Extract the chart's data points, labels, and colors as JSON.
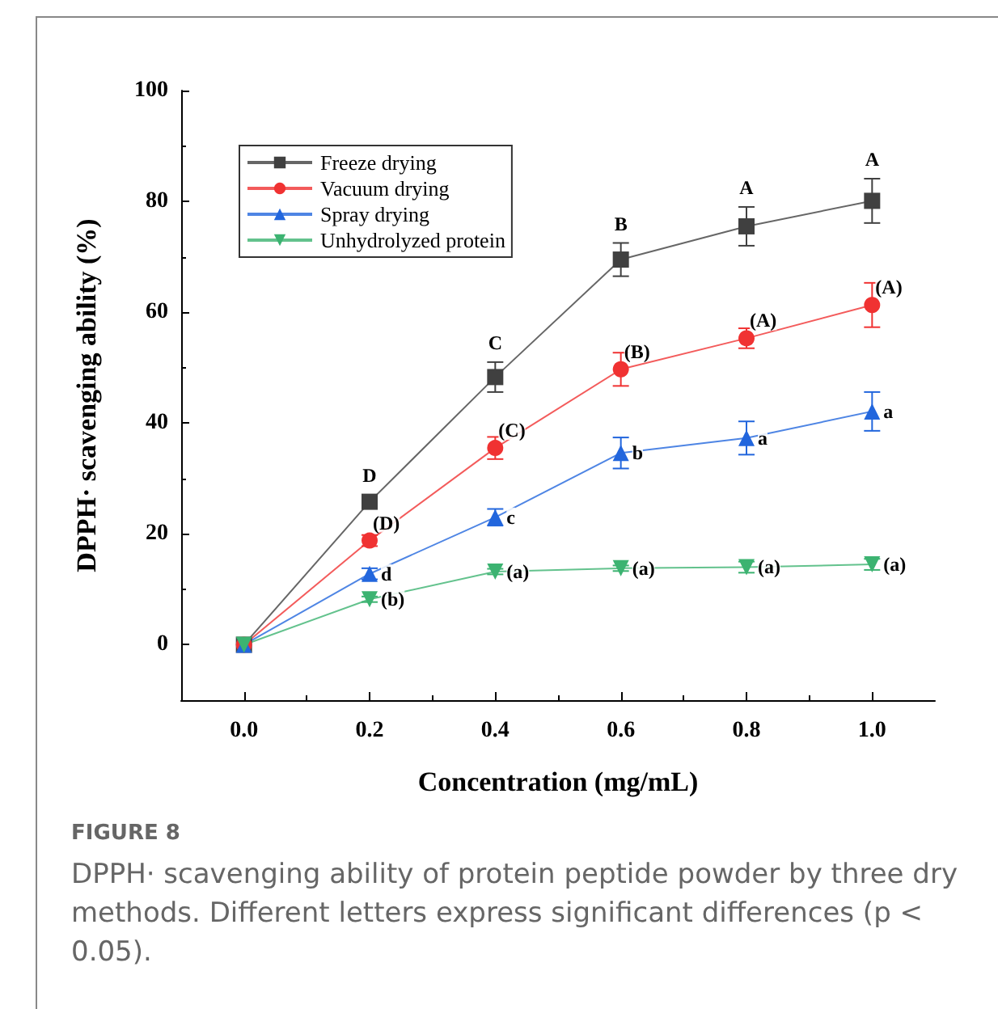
{
  "chart_data": {
    "type": "line",
    "xlabel": "Concentration (mg/mL)",
    "ylabel": "DPPH· scavenging ability (%)",
    "x": [
      0,
      0.2,
      0.4,
      0.6,
      0.8,
      1.0
    ],
    "xlim": [
      -0.1,
      1.1
    ],
    "xticks": [
      {
        "value": 0,
        "label": "0.0"
      },
      {
        "value": 0.2,
        "label": "0.2"
      },
      {
        "value": 0.4,
        "label": "0.4"
      },
      {
        "value": 0.6,
        "label": "0.6"
      },
      {
        "value": 0.8,
        "label": "0.8"
      },
      {
        "value": 1.0,
        "label": "1.0"
      }
    ],
    "ylim": [
      -10,
      100
    ],
    "yticks": [
      0,
      20,
      40,
      60,
      80,
      100
    ],
    "grid": false,
    "legend": "top left",
    "line_style": "solid",
    "series": [
      {
        "name": "Freeze drying",
        "color": "#404040",
        "marker": "square",
        "values": [
          0,
          25.8,
          48.3,
          69.5,
          75.5,
          80.1
        ],
        "errors": [
          null,
          1.2,
          2.7,
          3,
          3.5,
          4
        ]
      },
      {
        "name": "Vacuum drying",
        "color": "#f03232",
        "marker": "circle",
        "values": [
          0,
          18.8,
          35.5,
          49.7,
          55.3,
          61.3
        ],
        "errors": [
          null,
          1,
          2,
          3,
          1.8,
          4
        ]
      },
      {
        "name": "Spray drying",
        "color": "#2266dd",
        "marker": "triangle",
        "values": [
          0,
          12.8,
          23.0,
          34.6,
          37.3,
          42.1
        ],
        "errors": [
          null,
          1,
          1.5,
          2.8,
          3,
          3.5
        ]
      },
      {
        "name": "Unhydrolyzed protein",
        "color": "#3cb371",
        "marker": "triangle-down",
        "values": [
          0,
          8.2,
          13.2,
          13.8,
          14.0,
          14.5
        ],
        "errors": [
          null,
          0.5,
          0.5,
          0.5,
          1,
          1
        ]
      }
    ],
    "annotations": [
      {
        "text": "D",
        "x": 0.2,
        "y": 25.8
      },
      {
        "text": "C",
        "x": 0.4,
        "y": 48.3
      },
      {
        "text": "B",
        "x": 0.6,
        "y": 69.5
      },
      {
        "text": "A",
        "x": 0.8,
        "y": 75.5
      },
      {
        "text": "A",
        "x": 1.0,
        "y": 80.1
      },
      {
        "text": "(D)",
        "x": 0.2,
        "y": 18.8
      },
      {
        "text": "(C)",
        "x": 0.4,
        "y": 35.5
      },
      {
        "text": "(B)",
        "x": 0.6,
        "y": 49.7
      },
      {
        "text": "(A)",
        "x": 0.8,
        "y": 55.3
      },
      {
        "text": "(A)",
        "x": 1.0,
        "y": 61.3
      },
      {
        "text": "d",
        "x": 0.2,
        "y": 12.8
      },
      {
        "text": "c",
        "x": 0.4,
        "y": 23.0
      },
      {
        "text": "b",
        "x": 0.6,
        "y": 34.6
      },
      {
        "text": "a",
        "x": 0.8,
        "y": 37.3
      },
      {
        "text": "a",
        "x": 1.0,
        "y": 42.1
      },
      {
        "text": "(b)",
        "x": 0.2,
        "y": 8.2
      },
      {
        "text": "(a)",
        "x": 0.4,
        "y": 13.2
      },
      {
        "text": "(a)",
        "x": 0.6,
        "y": 13.8
      },
      {
        "text": "(a)",
        "x": 0.8,
        "y": 14.0
      },
      {
        "text": "(a)",
        "x": 1.0,
        "y": 14.5
      },
      "FIGURE 8",
      "DPPH· scavenging ability of protein peptide powder by three dry methods. Different letters express significant differences (p < 0.05)."
    ]
  }
}
